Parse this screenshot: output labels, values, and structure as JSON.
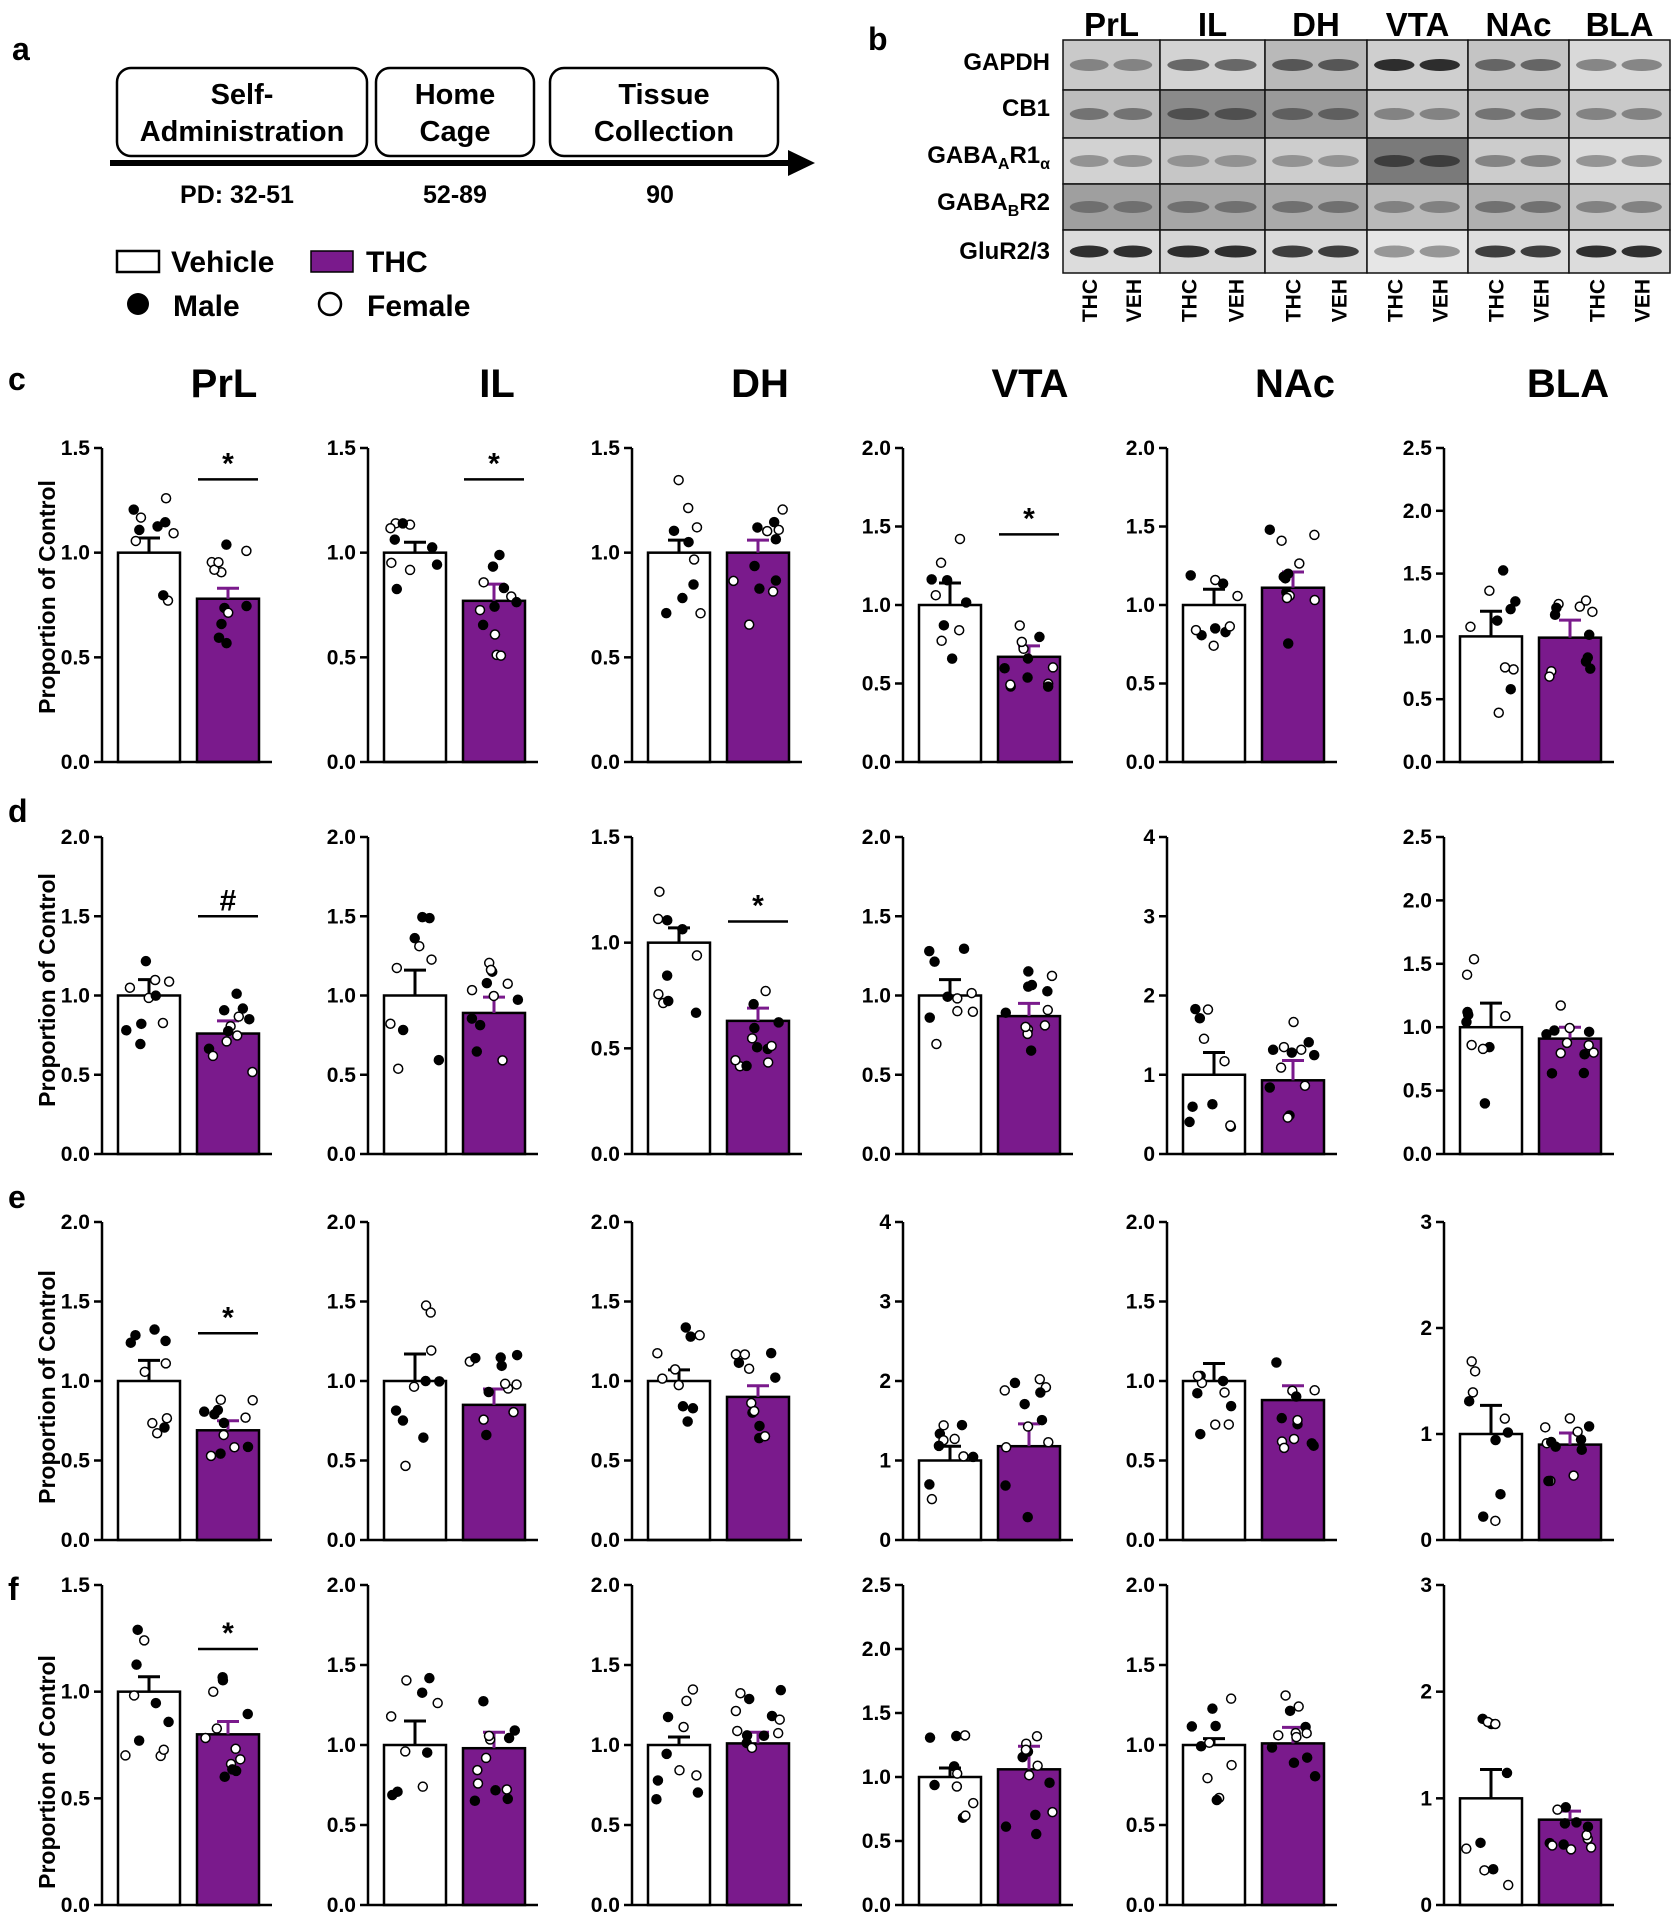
{
  "panel_letters": [
    "a",
    "b",
    "c",
    "d",
    "e",
    "f"
  ],
  "timeline": {
    "boxes": [
      {
        "line1": "Self-",
        "line2": "Administration"
      },
      {
        "line1": "Home",
        "line2": "Cage"
      },
      {
        "line1": "Tissue",
        "line2": "Collection"
      }
    ],
    "pd_labels": [
      "PD: 32-51",
      "52-89",
      "90"
    ]
  },
  "legend": {
    "vehicle": "Vehicle",
    "thc": "THC",
    "male": "Male",
    "female": "Female"
  },
  "colors": {
    "vehicle": "#ffffff",
    "thc": "#7a1a8c",
    "thc_error": "#7a1a8c",
    "axis": "#000000"
  },
  "blot": {
    "regions": [
      "PrL",
      "IL",
      "DH",
      "VTA",
      "NAc",
      "BLA"
    ],
    "proteins": [
      "GAPDH",
      "CB1",
      "GABAAR1α",
      "GABABR2",
      "GluR2/3"
    ],
    "protein_display": [
      {
        "main": "GABA",
        "sub": "A",
        "rest": "R1",
        "sub2": "α"
      },
      {
        "main": "GABA",
        "sub": "B",
        "rest": "R2",
        "sub2": ""
      }
    ],
    "lanes": [
      "THC",
      "VEH",
      "THC",
      "VEH",
      "THC",
      "VEH",
      "THC",
      "VEH",
      "THC",
      "VEH",
      "THC",
      "VEH"
    ]
  },
  "y_axis_title": "Proportion of Control",
  "chart_data": {
    "type": "bar",
    "regions": [
      "PrL",
      "IL",
      "DH",
      "VTA",
      "NAc",
      "BLA"
    ],
    "rows": [
      "c",
      "d",
      "e",
      "f"
    ],
    "groups": [
      "Vehicle",
      "THC"
    ],
    "panels": [
      {
        "row": "c",
        "region": "PrL",
        "ylim": [
          0,
          1.5
        ],
        "yticks": [
          "0.0",
          "0.5",
          "1.0",
          "1.5"
        ],
        "means": [
          1.0,
          0.78
        ],
        "sem": [
          0.07,
          0.05
        ],
        "sig": "*",
        "sig_y": 1.35
      },
      {
        "row": "c",
        "region": "IL",
        "ylim": [
          0,
          1.5
        ],
        "yticks": [
          "0.0",
          "0.5",
          "1.0",
          "1.5"
        ],
        "means": [
          1.0,
          0.77
        ],
        "sem": [
          0.05,
          0.08
        ],
        "sig": "*",
        "sig_y": 1.35
      },
      {
        "row": "c",
        "region": "DH",
        "ylim": [
          0,
          1.5
        ],
        "yticks": [
          "0.0",
          "0.5",
          "1.0",
          "1.5"
        ],
        "means": [
          1.0,
          1.0
        ],
        "sem": [
          0.06,
          0.06
        ],
        "sig": "",
        "sig_y": 0
      },
      {
        "row": "c",
        "region": "VTA",
        "ylim": [
          0,
          2.0
        ],
        "yticks": [
          "0.0",
          "0.5",
          "1.0",
          "1.5",
          "2.0"
        ],
        "means": [
          1.0,
          0.67
        ],
        "sem": [
          0.14,
          0.07
        ],
        "sig": "*",
        "sig_y": 1.45
      },
      {
        "row": "c",
        "region": "NAc",
        "ylim": [
          0,
          2.0
        ],
        "yticks": [
          "0.0",
          "0.5",
          "1.0",
          "1.5",
          "2.0"
        ],
        "means": [
          1.0,
          1.11
        ],
        "sem": [
          0.1,
          0.1
        ],
        "sig": "",
        "sig_y": 0
      },
      {
        "row": "c",
        "region": "BLA",
        "ylim": [
          0,
          2.5
        ],
        "yticks": [
          "0.0",
          "0.5",
          "1.0",
          "1.5",
          "2.0",
          "2.5"
        ],
        "means": [
          1.0,
          0.99
        ],
        "sem": [
          0.2,
          0.14
        ],
        "sig": "",
        "sig_y": 0
      },
      {
        "row": "d",
        "region": "PrL",
        "ylim": [
          0,
          2.0
        ],
        "yticks": [
          "0.0",
          "0.5",
          "1.0",
          "1.5",
          "2.0"
        ],
        "means": [
          1.0,
          0.76
        ],
        "sem": [
          0.1,
          0.08
        ],
        "sig": "#",
        "sig_y": 1.5
      },
      {
        "row": "d",
        "region": "IL",
        "ylim": [
          0,
          2.0
        ],
        "yticks": [
          "0.0",
          "0.5",
          "1.0",
          "1.5",
          "2.0"
        ],
        "means": [
          1.0,
          0.89
        ],
        "sem": [
          0.16,
          0.1
        ],
        "sig": "",
        "sig_y": 0
      },
      {
        "row": "d",
        "region": "DH",
        "ylim": [
          0,
          1.5
        ],
        "yticks": [
          "0.0",
          "0.5",
          "1.0",
          "1.5"
        ],
        "means": [
          1.0,
          0.63
        ],
        "sem": [
          0.07,
          0.06
        ],
        "sig": "*",
        "sig_y": 1.1
      },
      {
        "row": "d",
        "region": "VTA",
        "ylim": [
          0,
          2.0
        ],
        "yticks": [
          "0.0",
          "0.5",
          "1.0",
          "1.5",
          "2.0"
        ],
        "means": [
          1.0,
          0.87
        ],
        "sem": [
          0.1,
          0.08
        ],
        "sig": "",
        "sig_y": 0
      },
      {
        "row": "d",
        "region": "NAc",
        "ylim": [
          0,
          4
        ],
        "yticks": [
          "0",
          "1",
          "2",
          "3",
          "4"
        ],
        "means": [
          1.0,
          0.93
        ],
        "sem": [
          0.28,
          0.25
        ],
        "sig": "",
        "sig_y": 0
      },
      {
        "row": "d",
        "region": "BLA",
        "ylim": [
          0,
          2.5
        ],
        "yticks": [
          "0.0",
          "0.5",
          "1.0",
          "1.5",
          "2.0",
          "2.5"
        ],
        "means": [
          1.0,
          0.91
        ],
        "sem": [
          0.19,
          0.09
        ],
        "sig": "",
        "sig_y": 0
      },
      {
        "row": "e",
        "region": "PrL",
        "ylim": [
          0,
          2.0
        ],
        "yticks": [
          "0.0",
          "0.5",
          "1.0",
          "1.5",
          "2.0"
        ],
        "means": [
          1.0,
          0.69
        ],
        "sem": [
          0.13,
          0.06
        ],
        "sig": "*",
        "sig_y": 1.3
      },
      {
        "row": "e",
        "region": "IL",
        "ylim": [
          0,
          2.0
        ],
        "yticks": [
          "0.0",
          "0.5",
          "1.0",
          "1.5",
          "2.0"
        ],
        "means": [
          1.0,
          0.85
        ],
        "sem": [
          0.17,
          0.1
        ],
        "sig": "",
        "sig_y": 0
      },
      {
        "row": "e",
        "region": "DH",
        "ylim": [
          0,
          2.0
        ],
        "yticks": [
          "0.0",
          "0.5",
          "1.0",
          "1.5",
          "2.0"
        ],
        "means": [
          1.0,
          0.9
        ],
        "sem": [
          0.07,
          0.07
        ],
        "sig": "",
        "sig_y": 0
      },
      {
        "row": "e",
        "region": "VTA",
        "ylim": [
          0,
          4
        ],
        "yticks": [
          "0",
          "1",
          "2",
          "3",
          "4"
        ],
        "means": [
          1.0,
          1.18
        ],
        "sem": [
          0.18,
          0.28
        ],
        "sig": "",
        "sig_y": 0
      },
      {
        "row": "e",
        "region": "NAc",
        "ylim": [
          0,
          2.0
        ],
        "yticks": [
          "0.0",
          "0.5",
          "1.0",
          "1.5",
          "2.0"
        ],
        "means": [
          1.0,
          0.88
        ],
        "sem": [
          0.11,
          0.09
        ],
        "sig": "",
        "sig_y": 0
      },
      {
        "row": "e",
        "region": "BLA",
        "ylim": [
          0,
          3
        ],
        "yticks": [
          "0",
          "1",
          "2",
          "3"
        ],
        "means": [
          1.0,
          0.9
        ],
        "sem": [
          0.27,
          0.11
        ],
        "sig": "",
        "sig_y": 0
      },
      {
        "row": "f",
        "region": "PrL",
        "ylim": [
          0,
          1.5
        ],
        "yticks": [
          "0.0",
          "0.5",
          "1.0",
          "1.5"
        ],
        "means": [
          1.0,
          0.8
        ],
        "sem": [
          0.07,
          0.06
        ],
        "sig": "*",
        "sig_y": 1.2
      },
      {
        "row": "f",
        "region": "IL",
        "ylim": [
          0,
          2.0
        ],
        "yticks": [
          "0.0",
          "0.5",
          "1.0",
          "1.5",
          "2.0"
        ],
        "means": [
          1.0,
          0.98
        ],
        "sem": [
          0.15,
          0.1
        ],
        "sig": "",
        "sig_y": 0
      },
      {
        "row": "f",
        "region": "DH",
        "ylim": [
          0,
          2.0
        ],
        "yticks": [
          "0.0",
          "0.5",
          "1.0",
          "1.5",
          "2.0"
        ],
        "means": [
          1.0,
          1.01
        ],
        "sem": [
          0.05,
          0.07
        ],
        "sig": "",
        "sig_y": 0
      },
      {
        "row": "f",
        "region": "VTA",
        "ylim": [
          0,
          2.5
        ],
        "yticks": [
          "0.0",
          "0.5",
          "1.0",
          "1.5",
          "2.0",
          "2.5"
        ],
        "means": [
          1.0,
          1.06
        ],
        "sem": [
          0.07,
          0.18
        ],
        "sig": "",
        "sig_y": 0
      },
      {
        "row": "f",
        "region": "NAc",
        "ylim": [
          0,
          2.0
        ],
        "yticks": [
          "0.0",
          "0.5",
          "1.0",
          "1.5",
          "2.0"
        ],
        "means": [
          1.0,
          1.01
        ],
        "sem": [
          0.04,
          0.1
        ],
        "sig": "",
        "sig_y": 0
      },
      {
        "row": "f",
        "region": "BLA",
        "ylim": [
          0,
          3
        ],
        "yticks": [
          "0",
          "1",
          "2",
          "3"
        ],
        "means": [
          1.0,
          0.8
        ],
        "sem": [
          0.27,
          0.08
        ],
        "sig": "",
        "sig_y": 0
      }
    ]
  }
}
